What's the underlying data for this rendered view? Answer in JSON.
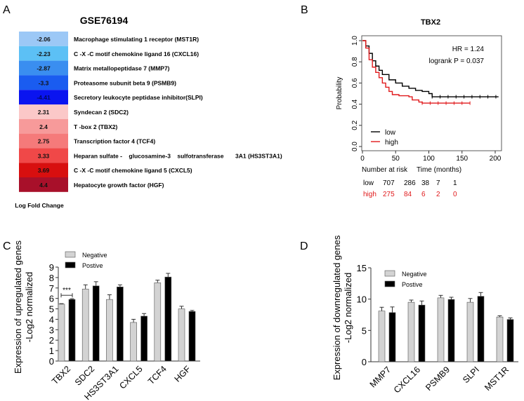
{
  "panel_labels": [
    "A",
    "B",
    "C",
    "D"
  ],
  "chart_data": [
    {
      "type": "heatmap",
      "title": "GSE76194",
      "xlabel": "Log Fold Change",
      "rows": [
        {
          "value": "-2.06",
          "label": "Macrophage stimulating 1 receptor (MST1R)",
          "color": "#9cc8f6"
        },
        {
          "value": "-2.23",
          "label": "C -X -C motif chemokine ligand 16 (CXCL16)",
          "color": "#5cc0f5"
        },
        {
          "value": "-2.87",
          "label": "Matrix metallopeptidase 7 (MMP7)",
          "color": "#3a8ef0"
        },
        {
          "value": "-3.3",
          "label": "Proteasome subunit beta 9 (PSMB9)",
          "color": "#1a5cf0"
        },
        {
          "value": "-4.41",
          "label": "Secretory leukocyte peptidase inhibitor(SLPI)",
          "color": "#0a14f0"
        },
        {
          "value": "2.31",
          "label": "Syndecan 2 (SDC2)",
          "color": "#fbc8c8"
        },
        {
          "value": "2.4",
          "label": "T -box 2 (TBX2)",
          "color": "#f79a9a"
        },
        {
          "value": "2.75",
          "label": "Transcription factor 4 (TCF4)",
          "color": "#f57a7a"
        },
        {
          "value": "3.33",
          "label": "Heparan sulfate -    glucosamine-3    sulfotransferase       3A1 (HS3ST3A1)",
          "color": "#f04848"
        },
        {
          "value": "3.69",
          "label": "C -X -C motif chemokine ligand 5 (CXCL5)",
          "color": "#d80f0f"
        },
        {
          "value": "4.4",
          "label": "Hepatocyte growth factor (HGF)",
          "color": "#a8102a"
        }
      ]
    },
    {
      "type": "line",
      "title": "TBX2",
      "xlabel": "Time (months)",
      "ylabel": "Probability",
      "xlim": [
        0,
        200
      ],
      "ylim": [
        0,
        1
      ],
      "xticks": [
        "0",
        "50",
        "100",
        "150",
        "200"
      ],
      "yticks": [
        "0.0",
        "0.2",
        "0.4",
        "0.6",
        "0.8",
        "1.0"
      ],
      "annotations": [
        "HR = 1.24",
        "logrank P = 0.037"
      ],
      "legend_position": "bottom-left",
      "series": [
        {
          "name": "low",
          "color": "#000000",
          "x": [
            0,
            5,
            10,
            15,
            20,
            25,
            30,
            40,
            50,
            60,
            70,
            80,
            90,
            100,
            105,
            205
          ],
          "y": [
            1,
            0.95,
            0.88,
            0.81,
            0.76,
            0.72,
            0.68,
            0.63,
            0.6,
            0.57,
            0.55,
            0.53,
            0.52,
            0.5,
            0.47,
            0.47
          ]
        },
        {
          "name": "high",
          "color": "#e0191b",
          "x": [
            0,
            5,
            10,
            15,
            20,
            25,
            30,
            35,
            40,
            45,
            55,
            70,
            75,
            85,
            90,
            162
          ],
          "y": [
            1,
            0.93,
            0.82,
            0.75,
            0.7,
            0.65,
            0.6,
            0.56,
            0.52,
            0.49,
            0.48,
            0.47,
            0.44,
            0.42,
            0.41,
            0.41
          ]
        }
      ],
      "risk_table": {
        "header": "Number at risk",
        "rows": [
          {
            "name": "low",
            "color": "#000000",
            "values": [
              "707",
              "286",
              "38",
              "7",
              "1"
            ]
          },
          {
            "name": "high",
            "color": "#e0191b",
            "values": [
              "275",
              "84",
              "6",
              "2",
              "0"
            ]
          }
        ]
      }
    },
    {
      "type": "bar",
      "ylabel": [
        "Expression of upregulated genes",
        "-Log2 normalized"
      ],
      "ylim": [
        0,
        9
      ],
      "yticks": [
        "0",
        "1",
        "2",
        "3",
        "4",
        "5",
        "6",
        "7",
        "8",
        "9"
      ],
      "categories": [
        "TBX2",
        "SDC2",
        "HS3ST3A1",
        "CXCL5",
        "TCF4",
        "HGF"
      ],
      "series": [
        {
          "name": "Negative",
          "color": "#d3d3d3",
          "values": [
            5.45,
            6.9,
            5.9,
            3.7,
            7.5,
            5.0
          ],
          "errors": [
            0.05,
            0.4,
            0.45,
            0.3,
            0.25,
            0.25
          ]
        },
        {
          "name": "Postive",
          "color": "#000000",
          "values": [
            5.9,
            7.2,
            7.1,
            4.3,
            8.05,
            4.75
          ],
          "errors": [
            0.07,
            0.4,
            0.2,
            0.25,
            0.35,
            0.1
          ]
        }
      ],
      "significance": {
        "category": "TBX2",
        "label": "***"
      }
    },
    {
      "type": "bar",
      "ylabel": [
        "Expression of downregulated genes",
        "-Log2 normalized"
      ],
      "ylim": [
        0,
        15
      ],
      "yticks": [
        "0",
        "5",
        "10",
        "15"
      ],
      "categories": [
        "MMP7",
        "CXCL16",
        "PSMB9",
        "SLPI",
        "MST1R"
      ],
      "series": [
        {
          "name": "Negative",
          "color": "#d3d3d3",
          "values": [
            8.1,
            9.5,
            10.2,
            9.5,
            7.15
          ],
          "errors": [
            0.6,
            0.35,
            0.4,
            0.6,
            0.2
          ]
        },
        {
          "name": "Postive",
          "color": "#000000",
          "values": [
            7.85,
            9.05,
            9.95,
            10.45,
            6.75
          ],
          "errors": [
            0.9,
            0.65,
            0.35,
            0.6,
            0.25
          ]
        }
      ]
    }
  ]
}
